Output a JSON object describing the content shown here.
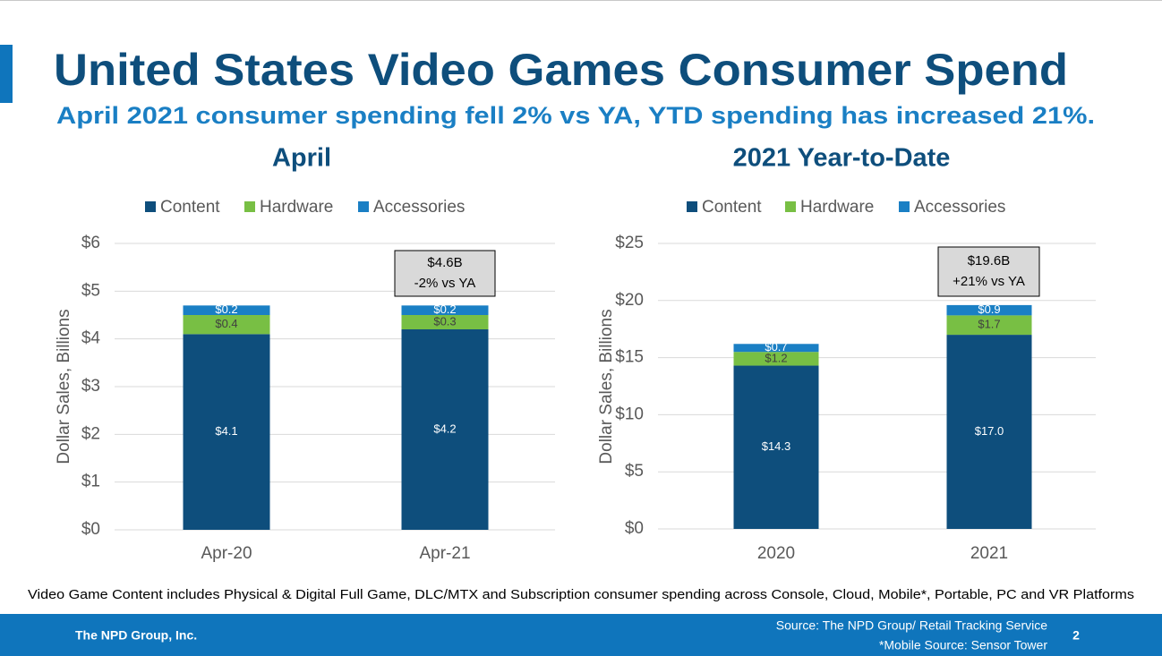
{
  "slide": {
    "title": "United States Video Games Consumer Spend",
    "subtitle": "April 2021 consumer spending fell 2% vs YA, YTD spending has increased 21%.",
    "note": "Video Game Content includes Physical & Digital Full Game, DLC/MTX and Subscription consumer spending across Console, Cloud, Mobile*, Portable, PC and VR Platforms",
    "company": "The NPD Group, Inc.",
    "source": "Source: The NPD Group/ Retail Tracking Service",
    "mobile_source": "*Mobile Source: Sensor Tower",
    "page_number": "2"
  },
  "chart_data": [
    {
      "type": "stacked_bar",
      "title": "April",
      "y_label": "Dollar Sales, Billions",
      "legend": "top",
      "grid": true,
      "categories": [
        "Apr-20",
        "Apr-21"
      ],
      "series": [
        {
          "name": "Content",
          "color": "#0e4e7c",
          "values": [
            4.1,
            4.2
          ],
          "value_labels": [
            "$4.1",
            "$4.2"
          ]
        },
        {
          "name": "Hardware",
          "color": "#78bf44",
          "values": [
            0.4,
            0.3
          ],
          "value_labels": [
            "$0.4",
            "$0.3"
          ]
        },
        {
          "name": "Accessories",
          "color": "#1a7fc4",
          "values": [
            0.2,
            0.2
          ],
          "value_labels": [
            "$0.2",
            "$0.2"
          ]
        }
      ],
      "ylim": [
        0,
        6
      ],
      "yticks": [
        {
          "value": 0,
          "label": "$0"
        },
        {
          "value": 1,
          "label": "$1"
        },
        {
          "value": 2,
          "label": "$2"
        },
        {
          "value": 3,
          "label": "$3"
        },
        {
          "value": 4,
          "label": "$4"
        },
        {
          "value": 5,
          "label": "$5"
        },
        {
          "value": 6,
          "label": "$6"
        }
      ],
      "annotation": [
        "$4.6B",
        "-2% vs YA"
      ]
    },
    {
      "type": "stacked_bar",
      "title": "2021 Year-to-Date",
      "y_label": "Dollar Sales, Billions",
      "legend": "top",
      "grid": true,
      "categories": [
        "2020",
        "2021"
      ],
      "series": [
        {
          "name": "Content",
          "color": "#0e4e7c",
          "values": [
            14.3,
            17.0
          ],
          "value_labels": [
            "$14.3",
            "$17.0"
          ]
        },
        {
          "name": "Hardware",
          "color": "#78bf44",
          "values": [
            1.2,
            1.7
          ],
          "value_labels": [
            "$1.2",
            "$1.7"
          ]
        },
        {
          "name": "Accessories",
          "color": "#1a7fc4",
          "values": [
            0.7,
            0.9
          ],
          "value_labels": [
            "$0.7",
            "$0.9"
          ]
        }
      ],
      "ylim": [
        0,
        25
      ],
      "yticks": [
        {
          "value": 0,
          "label": "$0"
        },
        {
          "value": 5,
          "label": "$5"
        },
        {
          "value": 10,
          "label": "$10"
        },
        {
          "value": 15,
          "label": "$15"
        },
        {
          "value": 20,
          "label": "$20"
        },
        {
          "value": 25,
          "label": "$25"
        }
      ],
      "annotation": [
        "$19.6B",
        "+21% vs YA"
      ]
    }
  ]
}
